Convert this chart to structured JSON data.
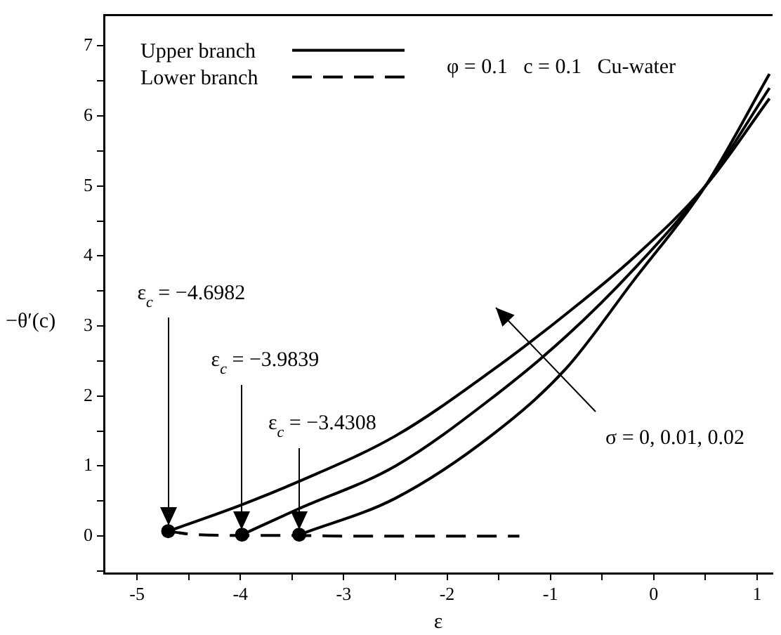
{
  "chart_data": {
    "type": "line",
    "xlabel": "ε",
    "ylabel": "−θ′(c)",
    "xlim": [
      -5.32,
      1.15
    ],
    "ylim": [
      -0.53,
      7.44
    ],
    "xticks": [
      -5,
      {
        "value": -4.5,
        "label": null
      },
      -4,
      {
        "value": -3.5,
        "label": null
      },
      -3,
      {
        "value": -2.5,
        "label": null
      },
      -2,
      {
        "value": -1.5,
        "label": null
      },
      -1,
      {
        "value": -0.5,
        "label": null
      },
      0,
      {
        "value": 0.5,
        "label": null
      },
      1
    ],
    "yticks": [
      {
        "value": -0.5,
        "label": null
      },
      0,
      {
        "value": 0.5,
        "label": null
      },
      1,
      {
        "value": 1.5,
        "label": null
      },
      2,
      {
        "value": 2.5,
        "label": null
      },
      3,
      {
        "value": 3.5,
        "label": null
      },
      4,
      {
        "value": 4.5,
        "label": null
      },
      5,
      {
        "value": 5.5,
        "label": null
      },
      6,
      {
        "value": 6.5,
        "label": null
      },
      7
    ],
    "grid": false,
    "legend": "top left",
    "marker": "none",
    "series": [
      {
        "name": "Upper branch",
        "color": "#000000",
        "line_style": "solid",
        "x": [
          -4.6982,
          -4,
          -3.45,
          -2.5,
          -1.55,
          -0.85,
          -0.2,
          0.5,
          1.12
        ],
        "values": [
          0.07,
          0.44,
          0.77,
          1.43,
          2.38,
          3.17,
          3.97,
          5.0,
          6.25
        ]
      },
      {
        "color": "#000000",
        "line_style": "solid",
        "x": [
          -3.9839,
          -3.45,
          -2.5,
          -1.55,
          -0.85,
          -0.2,
          0.5,
          1.12
        ],
        "values": [
          0.02,
          0.38,
          1.0,
          1.99,
          2.85,
          3.8,
          5.0,
          6.4
        ]
      },
      {
        "color": "#000000",
        "line_style": "solid",
        "x": [
          -3.4308,
          -2.5,
          -1.55,
          -0.85,
          -0.2,
          0.5,
          1.12
        ],
        "values": [
          0.02,
          0.54,
          1.46,
          2.39,
          3.64,
          5.0,
          6.6
        ]
      },
      {
        "name": "Lower branch",
        "color": "#000000",
        "line_style": "dashed",
        "x": [
          -4.6982,
          -4.5,
          -4,
          -3.5,
          -3,
          -2,
          -1.3
        ],
        "values": [
          0.07,
          0.03,
          0.01,
          0.01,
          0,
          0,
          0
        ]
      },
      {
        "type": "scatter",
        "color": "#000000",
        "marker": "circle",
        "x": [
          -4.6982,
          -3.9839,
          -3.4308
        ],
        "values": [
          0.07,
          0.02,
          0.02
        ]
      }
    ],
    "annotations": [
      {
        "text": "ε$_{c}$ = −4.6982",
        "x": -4.6982,
        "y": 0.07
      },
      {
        "text": "ε$_{c}$ = −3.9839",
        "x": -3.9839,
        "y": 0.02
      },
      {
        "text": "ε$_{c}$ = −3.4308",
        "x": -3.4308,
        "y": 0.02
      },
      "φ = 0.1   c = 0.1   Cu-water",
      "σ = 0, 0.01, 0.02"
    ]
  }
}
